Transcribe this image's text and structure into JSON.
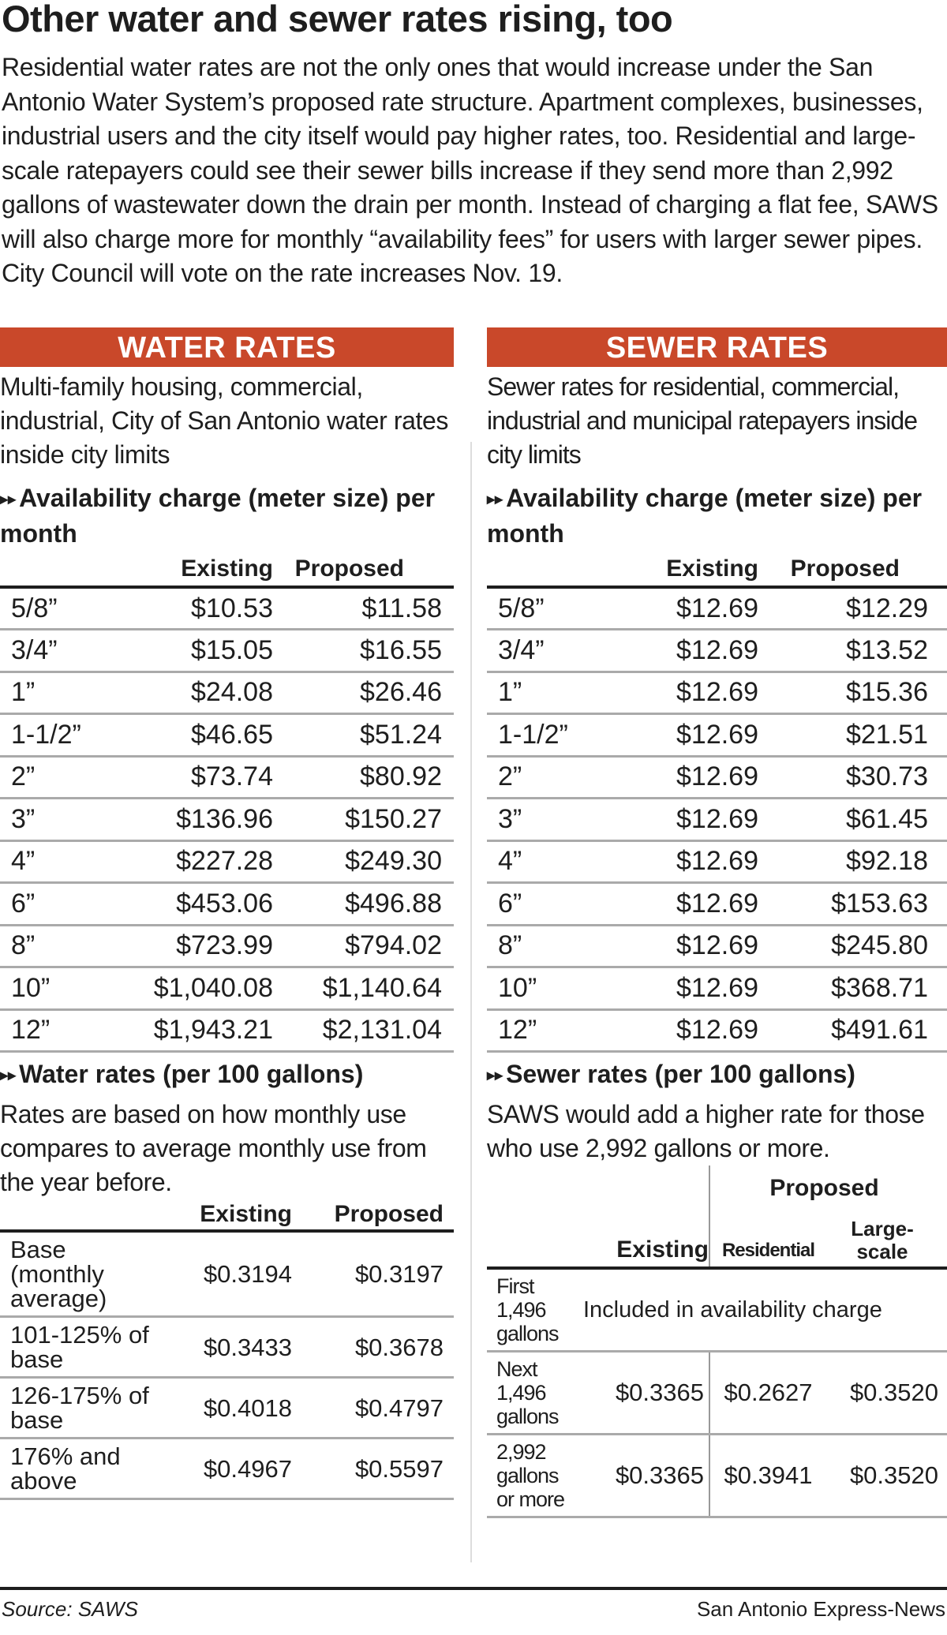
{
  "title": "Other water and sewer rates rising, too",
  "intro": "Residential water rates are not the only ones that would increase under the San Antonio Water System’s proposed rate structure. Apartment complexes, businesses, industrial users and the city itself would pay higher rates, too. Residential and large-scale ratepayers could see their sewer bills increase if they send more than 2,992 gallons of wastewater down the drain per month. Instead of charging a flat fee, SAWS will also charge more for monthly “availability fees” for users with larger sewer pipes. City Council will vote on the rate increases Nov. 19.",
  "accent_color": "#c9482a",
  "water": {
    "banner": "WATER RATES",
    "desc": "Multi-family housing, commercial, industrial, City of San Antonio water rates inside city limits",
    "avail_heading": "Availability charge (meter size) per month",
    "avail_cols": [
      "Existing",
      "Proposed"
    ],
    "avail_rows": [
      [
        "5/8”",
        "$10.53",
        "$11.58"
      ],
      [
        "3/4”",
        "$15.05",
        "$16.55"
      ],
      [
        "1”",
        "$24.08",
        "$26.46"
      ],
      [
        "1-1/2”",
        "$46.65",
        "$51.24"
      ],
      [
        "2”",
        "$73.74",
        "$80.92"
      ],
      [
        "3”",
        "$136.96",
        "$150.27"
      ],
      [
        "4”",
        "$227.28",
        "$249.30"
      ],
      [
        "6”",
        "$453.06",
        "$496.88"
      ],
      [
        "8”",
        "$723.99",
        "$794.02"
      ],
      [
        "10”",
        "$1,040.08",
        "$1,140.64"
      ],
      [
        "12”",
        "$1,943.21",
        "$2,131.04"
      ]
    ],
    "rates_heading": "Water rates (per 100 gallons)",
    "rates_desc": "Rates are based on how monthly use compares to average monthly use from the year before.",
    "rates_cols": [
      "Existing",
      "Proposed"
    ],
    "rates_rows": [
      [
        "Base (monthly average)",
        "$0.3194",
        "$0.3197"
      ],
      [
        "101-125% of base",
        "$0.3433",
        "$0.3678"
      ],
      [
        "126-175% of base",
        "$0.4018",
        "$0.4797"
      ],
      [
        "176% and above",
        "$0.4967",
        "$0.5597"
      ]
    ]
  },
  "sewer": {
    "banner": "SEWER RATES",
    "desc": "Sewer rates for residential, commercial, industrial and municipal ratepayers inside city limits",
    "avail_heading": "Availability charge (meter size) per month",
    "avail_cols": [
      "Existing",
      "Proposed"
    ],
    "avail_rows": [
      [
        "5/8”",
        "$12.69",
        "$12.29"
      ],
      [
        "3/4”",
        "$12.69",
        "$13.52"
      ],
      [
        "1”",
        "$12.69",
        "$15.36"
      ],
      [
        "1-1/2”",
        "$12.69",
        "$21.51"
      ],
      [
        "2”",
        "$12.69",
        "$30.73"
      ],
      [
        "3”",
        "$12.69",
        "$61.45"
      ],
      [
        "4”",
        "$12.69",
        "$92.18"
      ],
      [
        "6”",
        "$12.69",
        "$153.63"
      ],
      [
        "8”",
        "$12.69",
        "$245.80"
      ],
      [
        "10”",
        "$12.69",
        "$368.71"
      ],
      [
        "12”",
        "$12.69",
        "$491.61"
      ]
    ],
    "rates_heading": "Sewer rates (per 100 gallons)",
    "rates_desc": "SAWS would add a higher rate for those who use 2,992 gallons or more.",
    "col_existing": "Existing",
    "col_proposed": "Proposed",
    "col_residential": "Residential",
    "col_large": "Large-scale",
    "row1_label": "First 1,496 gallons",
    "row1_note": "Included in availability charge",
    "rows": [
      [
        "Next 1,496 gallons",
        "$0.3365",
        "$0.2627",
        "$0.3520"
      ],
      [
        "2,992 gallons or more",
        "$0.3365",
        "$0.3941",
        "$0.3520"
      ]
    ]
  },
  "source": "Source: SAWS",
  "credit": "San Antonio Express-News"
}
